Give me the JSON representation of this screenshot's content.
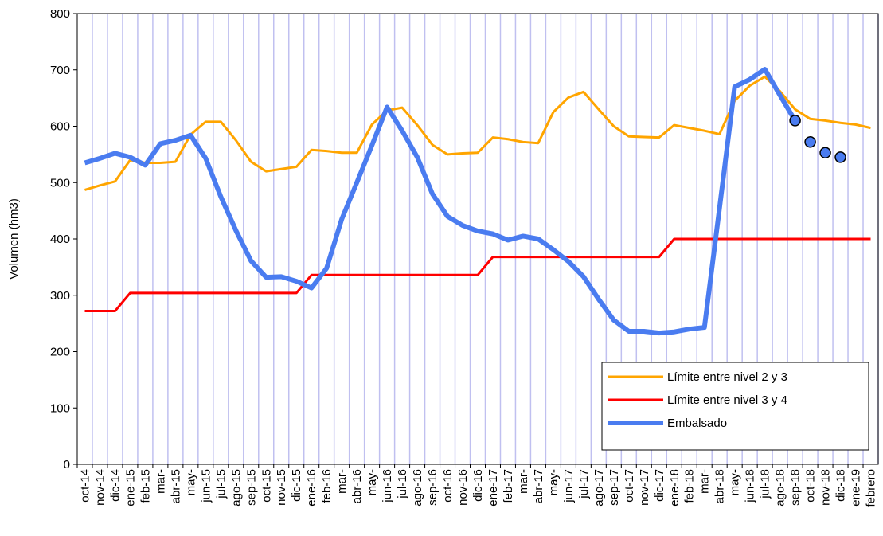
{
  "chart_data": {
    "type": "line",
    "y_label": "Volumen (hm3)",
    "categories": [
      "oct-14",
      "nov-14",
      "dic-14",
      "ene-15",
      "feb-15",
      "mar-",
      "abr-15",
      "may-",
      "jun-15",
      "jul-15",
      "ago-15",
      "sep-15",
      "oct-15",
      "nov-15",
      "dic-15",
      "ene-16",
      "feb-16",
      "mar-",
      "abr-16",
      "may-",
      "jun-16",
      "jul-16",
      "ago-16",
      "sep-16",
      "oct-16",
      "nov-16",
      "dic-16",
      "ene-17",
      "feb-17",
      "mar-",
      "abr-17",
      "may-",
      "jun-17",
      "jul-17",
      "ago-17",
      "sep-17",
      "oct-17",
      "nov-17",
      "dic-17",
      "ene-18",
      "feb-18",
      "mar-",
      "abr-18",
      "may-",
      "jun-18",
      "jul-18",
      "ago-18",
      "sep-18",
      "oct-18",
      "nov-18",
      "dic-18",
      "ene-19",
      "febrero"
    ],
    "series": [
      {
        "name": "Límite entre nivel 2 y 3",
        "color": "#ffa500",
        "width": 3,
        "values": [
          487,
          495,
          502,
          540,
          535,
          535,
          537,
          585,
          608,
          608,
          575,
          537,
          520,
          524,
          528,
          558,
          556,
          553,
          553,
          603,
          628,
          633,
          602,
          567,
          550,
          552,
          553,
          580,
          577,
          572,
          570,
          625,
          651,
          661,
          630,
          600,
          582,
          581,
          580,
          602,
          597,
          592,
          586,
          645,
          672,
          688,
          662,
          630,
          613,
          610,
          606,
          603,
          597
        ]
      },
      {
        "name": "Límite entre nivel 3 y 4",
        "color": "#ff0000",
        "width": 3,
        "values": [
          272,
          272,
          272,
          304,
          304,
          304,
          304,
          304,
          304,
          304,
          304,
          304,
          304,
          304,
          304,
          336,
          336,
          336,
          336,
          336,
          336,
          336,
          336,
          336,
          336,
          336,
          336,
          368,
          368,
          368,
          368,
          368,
          368,
          368,
          368,
          368,
          368,
          368,
          368,
          400,
          400,
          400,
          400,
          400,
          400,
          400,
          400,
          400,
          400,
          400,
          400,
          400,
          400
        ]
      },
      {
        "name": "Embalsado",
        "color": "#4a7cf0",
        "width": 6,
        "values": [
          535,
          543,
          552,
          545,
          531,
          569,
          575,
          584,
          543,
          475,
          415,
          361,
          332,
          333,
          325,
          313,
          348,
          435,
          500,
          566,
          634,
          592,
          545,
          480,
          440,
          424,
          414,
          409,
          398,
          405,
          400,
          381,
          360,
          333,
          293,
          256,
          236,
          236,
          233,
          235,
          240,
          243,
          455,
          670,
          683,
          701,
          655,
          610,
          null,
          null,
          null,
          null,
          null
        ]
      },
      {
        "color": "#4a7cf0",
        "marker": "circle",
        "values": [
          null,
          null,
          null,
          null,
          null,
          null,
          null,
          null,
          null,
          null,
          null,
          null,
          null,
          null,
          null,
          null,
          null,
          null,
          null,
          null,
          null,
          null,
          null,
          null,
          null,
          null,
          null,
          null,
          null,
          null,
          null,
          null,
          null,
          null,
          null,
          null,
          null,
          null,
          null,
          null,
          null,
          null,
          null,
          null,
          null,
          null,
          null,
          610,
          572,
          553,
          545,
          null,
          null
        ]
      }
    ],
    "ylim": [
      0,
      800
    ],
    "yticks": [
      0,
      100,
      200,
      300,
      400,
      500,
      600,
      700,
      800
    ],
    "grid_color": "#c0c0f0"
  }
}
